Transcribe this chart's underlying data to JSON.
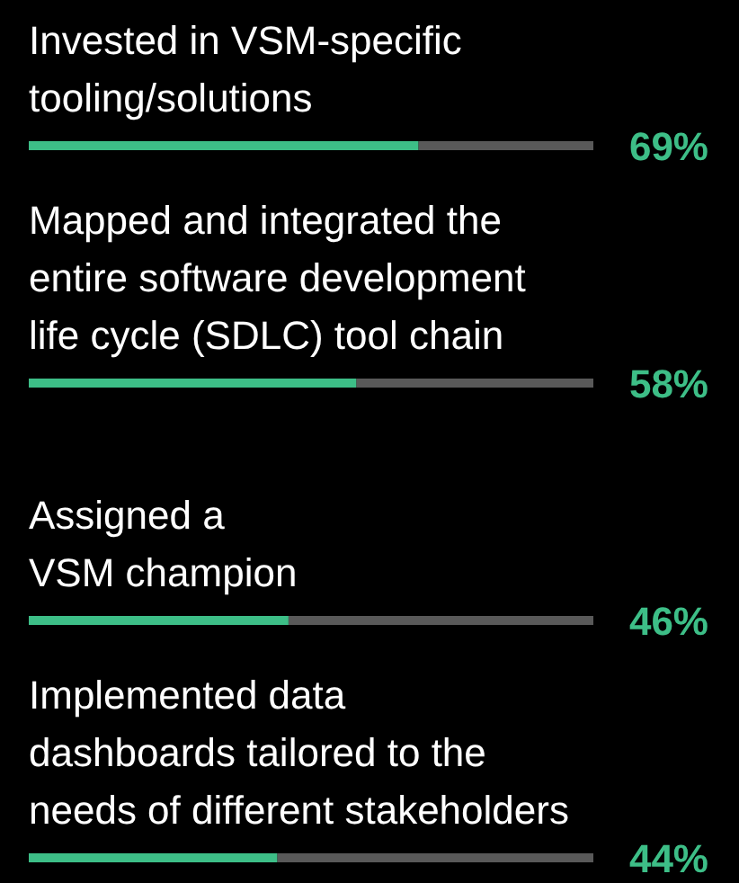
{
  "chart_data": {
    "type": "bar",
    "orientation": "horizontal",
    "categories": [
      "Invested in VSM-specific tooling/solutions",
      "Mapped and integrated the entire software development life cycle (SDLC) tool chain",
      "Assigned a VSM champion",
      "Implemented data dashboards tailored to the needs of different stakeholders"
    ],
    "values": [
      69,
      58,
      46,
      44
    ],
    "value_labels": [
      "69%",
      "58%",
      "46%",
      "44%"
    ],
    "color": "#3dbe87",
    "xlim": [
      0,
      100
    ]
  }
}
